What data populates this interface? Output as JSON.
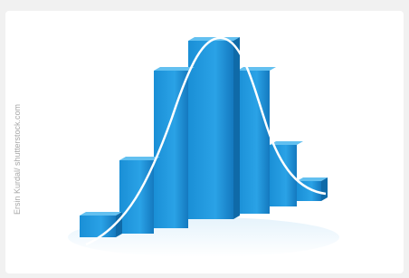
{
  "credit": "Ersin Kurdal/ shutterstock.com"
}
